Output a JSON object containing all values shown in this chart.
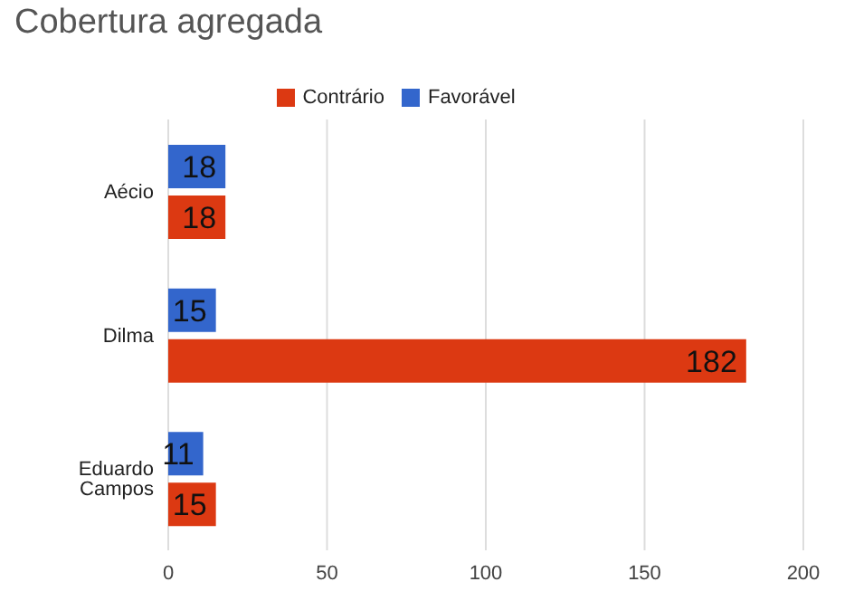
{
  "chart_data": {
    "type": "bar",
    "orientation": "horizontal",
    "title": "Cobertura agregada",
    "categories": [
      "Aécio",
      "Dilma",
      "Eduardo Campos"
    ],
    "series": [
      {
        "name": "Favorável",
        "color": "#3366cc",
        "values": [
          18,
          15,
          11
        ]
      },
      {
        "name": "Contrário",
        "color": "#dc3912",
        "values": [
          18,
          182,
          15
        ]
      }
    ],
    "xlim": [
      0,
      200
    ],
    "xticks": [
      0,
      50,
      100,
      150,
      200
    ],
    "grid": "x",
    "legend": "top",
    "data_labels": true
  }
}
